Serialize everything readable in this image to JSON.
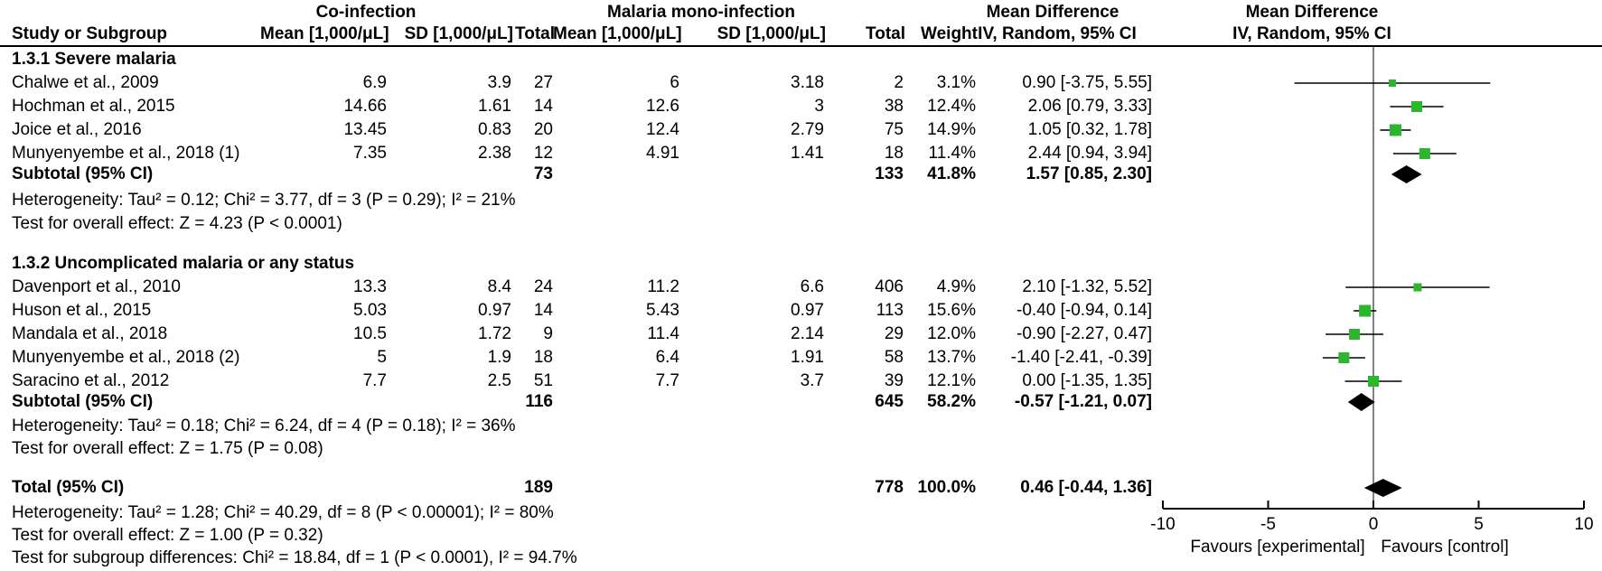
{
  "header": {
    "study_col": "Study or Subgroup",
    "group1": "Co-infection",
    "group2": "Malaria mono-infection",
    "mean_label": "Mean [1,000/μL]",
    "sd_label": "SD [1,000/μL]",
    "total_label": "Total",
    "weight_label": "Weight",
    "md_label": "Mean Difference",
    "method_label": "IV, Random, 95% CI"
  },
  "colors": {
    "square": "#2eb52e",
    "diamond": "#000000",
    "ci_line": "#000000",
    "zero_line": "#595959",
    "axis": "#000000"
  },
  "subgroups": [
    {
      "title": "1.3.1 Severe malaria",
      "studies": [
        {
          "name": "Chalwe et al., 2009",
          "mean1": "6.9",
          "sd1": "3.9",
          "total1": "27",
          "mean2": "6",
          "sd2": "3.18",
          "total2": "2",
          "weight": "3.1%",
          "md_text": "0.90 [-3.75, 5.55]",
          "md": 0.9,
          "lo": -3.75,
          "hi": 5.55,
          "w": 3.1
        },
        {
          "name": "Hochman et al., 2015",
          "mean1": "14.66",
          "sd1": "1.61",
          "total1": "14",
          "mean2": "12.6",
          "sd2": "3",
          "total2": "38",
          "weight": "12.4%",
          "md_text": "2.06 [0.79, 3.33]",
          "md": 2.06,
          "lo": 0.79,
          "hi": 3.33,
          "w": 12.4
        },
        {
          "name": "Joice  et al., 2016",
          "mean1": "13.45",
          "sd1": "0.83",
          "total1": "20",
          "mean2": "12.4",
          "sd2": "2.79",
          "total2": "75",
          "weight": "14.9%",
          "md_text": "1.05 [0.32, 1.78]",
          "md": 1.05,
          "lo": 0.32,
          "hi": 1.78,
          "w": 14.9
        },
        {
          "name": "Munyenyembe et al., 2018 (1)",
          "mean1": "7.35",
          "sd1": "2.38",
          "total1": "12",
          "mean2": "4.91",
          "sd2": "1.41",
          "total2": "18",
          "weight": "11.4%",
          "md_text": "2.44 [0.94, 3.94]",
          "md": 2.44,
          "lo": 0.94,
          "hi": 3.94,
          "w": 11.4
        }
      ],
      "subtotal": {
        "label": "Subtotal (95% CI)",
        "total1": "73",
        "total2": "133",
        "weight": "41.8%",
        "md_text": "1.57 [0.85, 2.30]",
        "md": 1.57,
        "lo": 0.85,
        "hi": 2.3
      },
      "heterogeneity": "Heterogeneity: Tau² = 0.12; Chi² = 3.77, df = 3 (P = 0.29); I² = 21%",
      "overall": "Test for overall effect: Z = 4.23 (P < 0.0001)"
    },
    {
      "title": "1.3.2 Uncomplicated malaria or any status",
      "studies": [
        {
          "name": "Davenport et al., 2010",
          "mean1": "13.3",
          "sd1": "8.4",
          "total1": "24",
          "mean2": "11.2",
          "sd2": "6.6",
          "total2": "406",
          "weight": "4.9%",
          "md_text": "2.10 [-1.32, 5.52]",
          "md": 2.1,
          "lo": -1.32,
          "hi": 5.52,
          "w": 4.9
        },
        {
          "name": "Huson et al., 2015",
          "mean1": "5.03",
          "sd1": "0.97",
          "total1": "14",
          "mean2": "5.43",
          "sd2": "0.97",
          "total2": "113",
          "weight": "15.6%",
          "md_text": "-0.40 [-0.94, 0.14]",
          "md": -0.4,
          "lo": -0.94,
          "hi": 0.14,
          "w": 15.6
        },
        {
          "name": "Mandala et al., 2018",
          "mean1": "10.5",
          "sd1": "1.72",
          "total1": "9",
          "mean2": "11.4",
          "sd2": "2.14",
          "total2": "29",
          "weight": "12.0%",
          "md_text": "-0.90 [-2.27, 0.47]",
          "md": -0.9,
          "lo": -2.27,
          "hi": 0.47,
          "w": 12.0
        },
        {
          "name": "Munyenyembe et al., 2018 (2)",
          "mean1": "5",
          "sd1": "1.9",
          "total1": "18",
          "mean2": "6.4",
          "sd2": "1.91",
          "total2": "58",
          "weight": "13.7%",
          "md_text": "-1.40 [-2.41, -0.39]",
          "md": -1.4,
          "lo": -2.41,
          "hi": -0.39,
          "w": 13.7
        },
        {
          "name": "Saracino et al., 2012",
          "mean1": "7.7",
          "sd1": "2.5",
          "total1": "51",
          "mean2": "7.7",
          "sd2": "3.7",
          "total2": "39",
          "weight": "12.1%",
          "md_text": "0.00 [-1.35, 1.35]",
          "md": 0.0,
          "lo": -1.35,
          "hi": 1.35,
          "w": 12.1
        }
      ],
      "subtotal": {
        "label": "Subtotal (95% CI)",
        "total1": "116",
        "total2": "645",
        "weight": "58.2%",
        "md_text": "-0.57 [-1.21, 0.07]",
        "md": -0.57,
        "lo": -1.21,
        "hi": 0.07
      },
      "heterogeneity": "Heterogeneity: Tau² = 0.18; Chi² = 6.24, df = 4 (P = 0.18); I² = 36%",
      "overall": "Test for overall effect: Z = 1.75 (P = 0.08)"
    }
  ],
  "total": {
    "label": "Total (95% CI)",
    "total1": "189",
    "total2": "778",
    "weight": "100.0%",
    "md_text": "0.46 [-0.44, 1.36]",
    "md": 0.46,
    "lo": -0.44,
    "hi": 1.36
  },
  "footer": {
    "heterogeneity": "Heterogeneity: Tau² = 1.28; Chi² = 40.29, df = 8 (P < 0.00001); I² = 80%",
    "overall": "Test for overall effect: Z = 1.00 (P = 0.32)",
    "subgroup_diff": "Test for subgroup differences: Chi² = 18.84, df = 1 (P < 0.0001), I² = 94.7%"
  },
  "axis": {
    "ticks": [
      "-10",
      "-5",
      "0",
      "5",
      "10"
    ],
    "tick_values": [
      -10,
      -5,
      0,
      5,
      10
    ],
    "favours_left": "Favours [experimental]",
    "favours_right": "Favours [control]"
  },
  "chart_data": {
    "type": "forest",
    "effect_measure": "Mean Difference, IV, Random, 95% CI",
    "x_axis": {
      "min": -10,
      "max": 10,
      "ticks": [
        -10,
        -5,
        0,
        5,
        10
      ],
      "label_left": "Favours [experimental]",
      "label_right": "Favours [control]"
    },
    "subgroups": [
      {
        "name": "1.3.1 Severe malaria",
        "points": [
          {
            "study": "Chalwe et al., 2009",
            "md": 0.9,
            "ci": [
              -3.75,
              5.55
            ],
            "weight_pct": 3.1
          },
          {
            "study": "Hochman et al., 2015",
            "md": 2.06,
            "ci": [
              0.79,
              3.33
            ],
            "weight_pct": 12.4
          },
          {
            "study": "Joice  et al., 2016",
            "md": 1.05,
            "ci": [
              0.32,
              1.78
            ],
            "weight_pct": 14.9
          },
          {
            "study": "Munyenyembe et al., 2018 (1)",
            "md": 2.44,
            "ci": [
              0.94,
              3.94
            ],
            "weight_pct": 11.4
          }
        ],
        "subtotal": {
          "md": 1.57,
          "ci": [
            0.85,
            2.3
          ],
          "weight_pct": 41.8,
          "n_coinfection": 73,
          "n_mono": 133
        }
      },
      {
        "name": "1.3.2 Uncomplicated malaria or any status",
        "points": [
          {
            "study": "Davenport et al., 2010",
            "md": 2.1,
            "ci": [
              -1.32,
              5.52
            ],
            "weight_pct": 4.9
          },
          {
            "study": "Huson et al., 2015",
            "md": -0.4,
            "ci": [
              -0.94,
              0.14
            ],
            "weight_pct": 15.6
          },
          {
            "study": "Mandala et al., 2018",
            "md": -0.9,
            "ci": [
              -2.27,
              0.47
            ],
            "weight_pct": 12.0
          },
          {
            "study": "Munyenyembe et al., 2018 (2)",
            "md": -1.4,
            "ci": [
              -2.41,
              -0.39
            ],
            "weight_pct": 13.7
          },
          {
            "study": "Saracino et al., 2012",
            "md": 0.0,
            "ci": [
              -1.35,
              1.35
            ],
            "weight_pct": 12.1
          }
        ],
        "subtotal": {
          "md": -0.57,
          "ci": [
            -1.21,
            0.07
          ],
          "weight_pct": 58.2,
          "n_coinfection": 116,
          "n_mono": 645
        }
      }
    ],
    "total": {
      "md": 0.46,
      "ci": [
        -0.44,
        1.36
      ],
      "weight_pct": 100.0,
      "n_coinfection": 189,
      "n_mono": 778
    }
  }
}
